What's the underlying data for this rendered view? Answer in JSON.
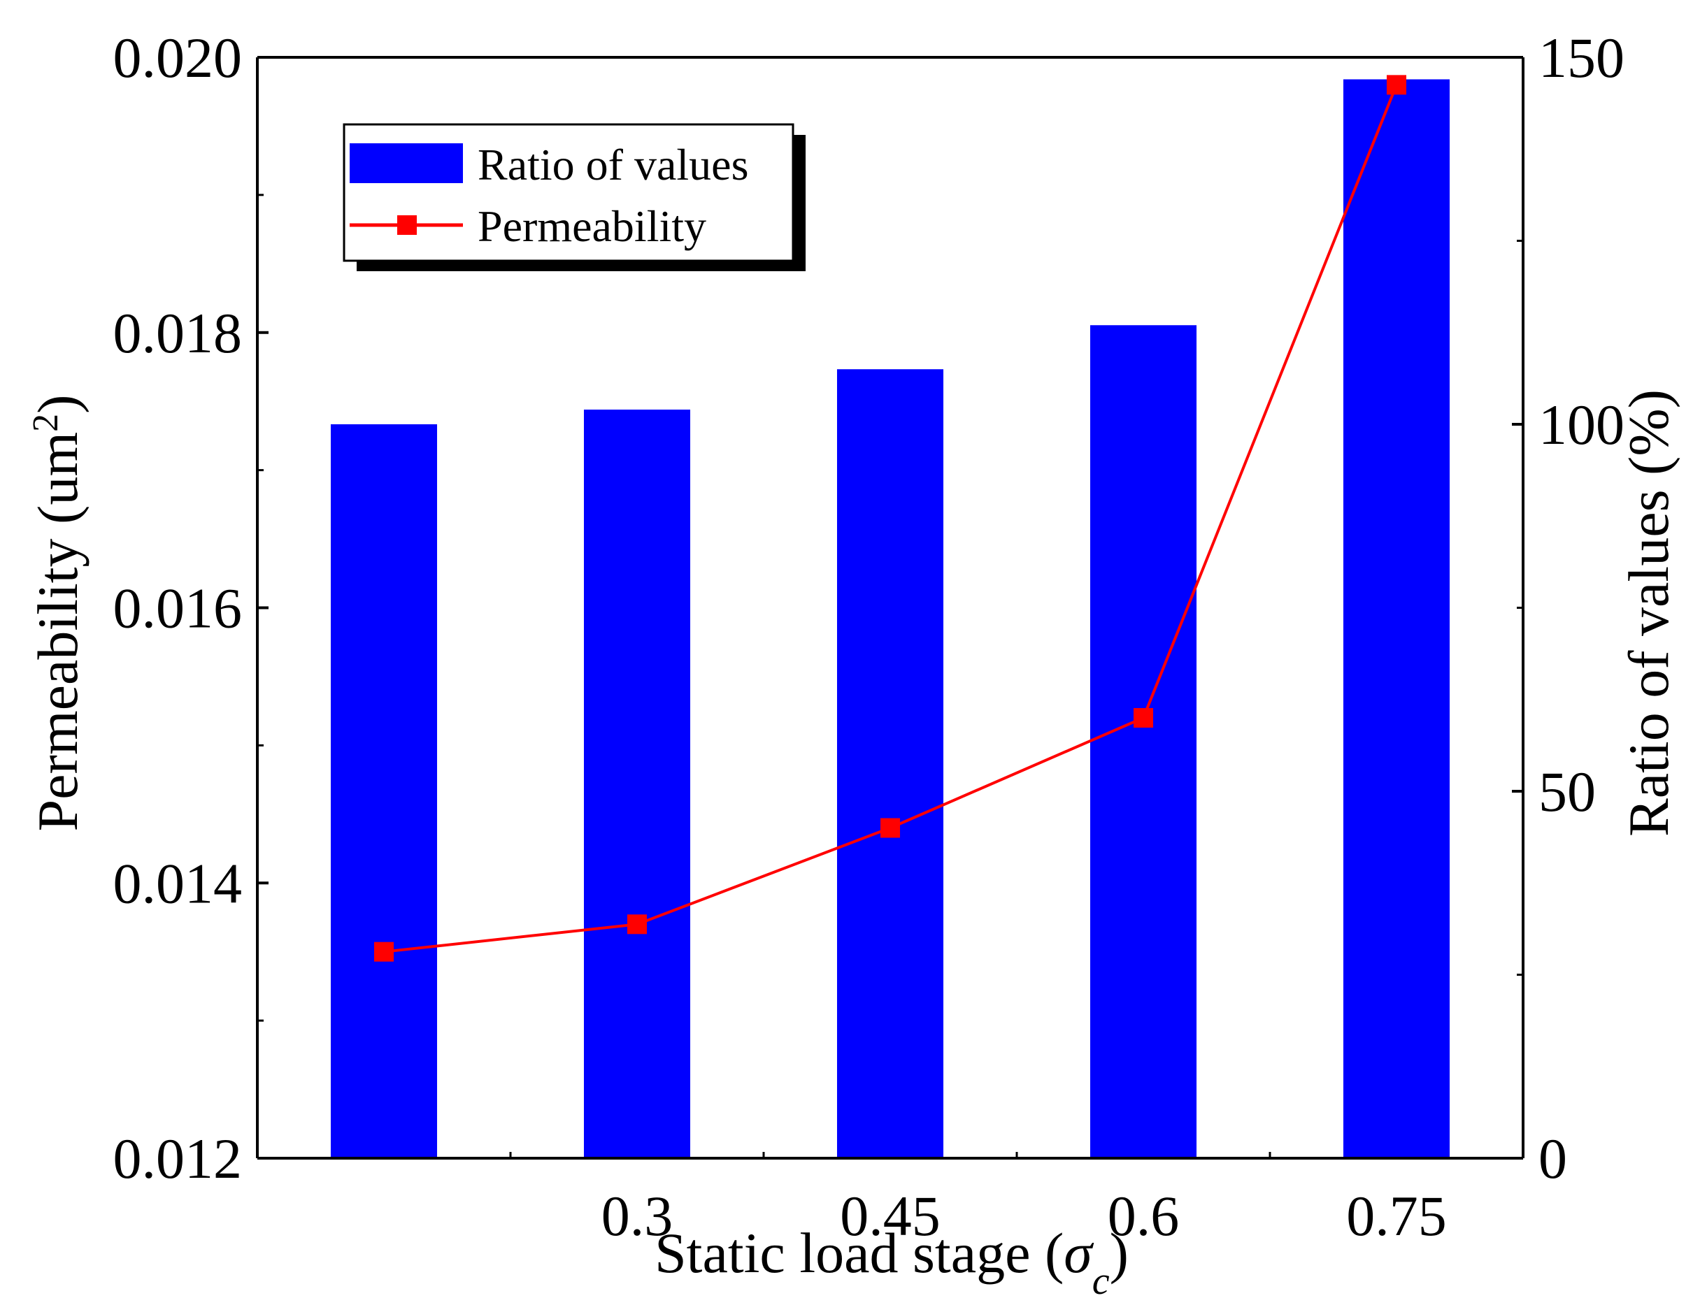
{
  "chart_data": {
    "type": "bar+line",
    "categories": [
      "",
      "0.3",
      "0.45",
      "0.6",
      "0.75"
    ],
    "xlabel": "Static load stage (",
    "xlabel_symbol": "σ",
    "xlabel_subscript": "c",
    "xlabel_close": ")",
    "y_left": {
      "label": "Permeability (um",
      "label_sup": "2",
      "label_close": ")",
      "ylim": [
        0.012,
        0.02
      ],
      "ticks": [
        "0.012",
        "0.014",
        "0.016",
        "0.018",
        "0.020"
      ]
    },
    "y_right": {
      "label": "Ratio of values (%)",
      "ylim": [
        0,
        150
      ],
      "ticks": [
        "0",
        "50",
        "100",
        "150"
      ]
    },
    "series": [
      {
        "name": "Ratio of values",
        "type": "bar",
        "axis": "right",
        "color": "#0000ff",
        "values": [
          100,
          102,
          107.5,
          113.5,
          147
        ]
      },
      {
        "name": "Permeability",
        "type": "line",
        "axis": "left",
        "color": "#ff0000",
        "marker": "square",
        "values": [
          0.0135,
          0.0137,
          0.0144,
          0.0152,
          0.0198
        ]
      }
    ],
    "legend": {
      "position": "top-left"
    }
  }
}
